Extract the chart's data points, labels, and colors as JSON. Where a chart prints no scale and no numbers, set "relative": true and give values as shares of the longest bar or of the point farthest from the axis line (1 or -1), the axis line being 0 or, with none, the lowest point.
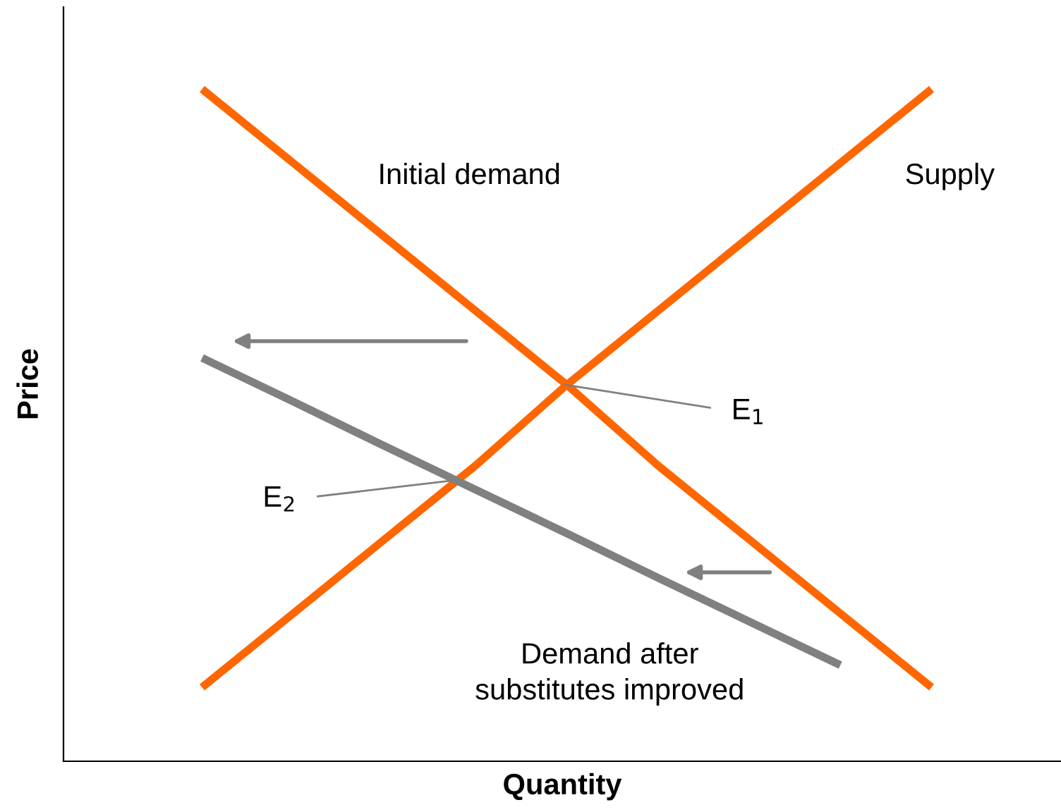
{
  "chart_data": {
    "type": "line",
    "relative": true,
    "xlabel": "Quantity",
    "ylabel": "Price",
    "categories": [
      null,
      null,
      null,
      null,
      null,
      null,
      null,
      null,
      null
    ],
    "series": [
      {
        "name": "Initial demand",
        "color": "#ff6600",
        "values": [
          1,
          0.89,
          0.78,
          0.67,
          0.56,
          0.44,
          0.33,
          0.22,
          0.11
        ]
      },
      {
        "name": "Supply",
        "color": "#ff6600",
        "values": [
          0.11,
          0.22,
          0.33,
          0.44,
          0.56,
          0.67,
          0.78,
          0.89,
          1
        ]
      },
      {
        "name": "Demand after\nsubstitutes improved",
        "color": "#808080",
        "values": [
          0.6,
          0.535,
          0.469,
          0.404,
          0.339,
          0.273,
          0.208,
          0.143,
          null
        ]
      }
    ],
    "annotations": [
      "E$_{1}$",
      "E$_{2}$"
    ],
    "grid": false,
    "legend": false,
    "tick_labels": false,
    "marker": "none",
    "line_style": "solid"
  }
}
